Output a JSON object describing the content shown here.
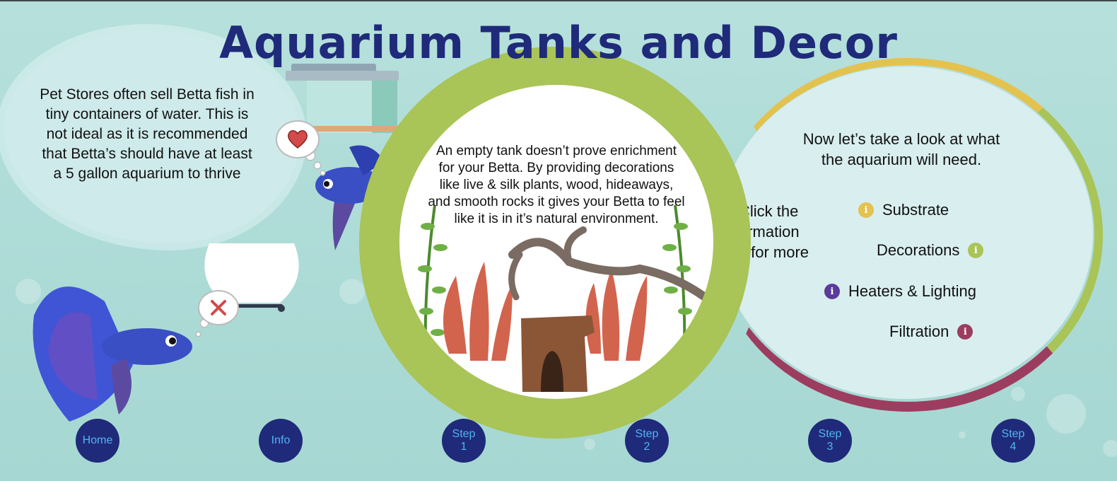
{
  "title": "Aquarium Tanks and Decor",
  "left_bubble": {
    "lines": [
      "Pet Stores often sell Betta fish in",
      "tiny containers of water. This is",
      "not ideal as it is recommended",
      "that Betta’s should have at least",
      "a 5 gallon aquarium to thrive"
    ]
  },
  "center": {
    "lines": [
      "An empty tank doesn’t prove enrichment",
      "for your Betta. By providing decorations",
      "like live & silk plants, wood, hideaways,",
      "and smooth rocks it gives your Betta to feel",
      "like it is in it’s natural environment."
    ]
  },
  "right_panel": {
    "intro_lines": [
      "Now let’s take a look at what",
      "the aquarium will need."
    ],
    "clipped_lines": [
      "Click the",
      "ormation",
      "s for more"
    ],
    "topics": [
      {
        "label": "Substrate",
        "color": "#e4c24e"
      },
      {
        "label": "Decorations",
        "color": "#a9c457"
      },
      {
        "label": "Heaters & Lighting",
        "color": "#5b3a99"
      },
      {
        "label": "Filtration",
        "color": "#9c3d5f"
      }
    ],
    "info_glyph": "i"
  },
  "nav": [
    {
      "label": "Home"
    },
    {
      "label": "Info"
    },
    {
      "label": "Step 1",
      "line1": "Step",
      "line2": "1"
    },
    {
      "label": "Step 2",
      "line1": "Step",
      "line2": "2"
    },
    {
      "label": "Step 3",
      "line1": "Step",
      "line2": "3"
    },
    {
      "label": "Step 4",
      "line1": "Step",
      "line2": "4"
    }
  ],
  "icons": {
    "heart": "heart-icon",
    "cross": "cross-icon"
  }
}
